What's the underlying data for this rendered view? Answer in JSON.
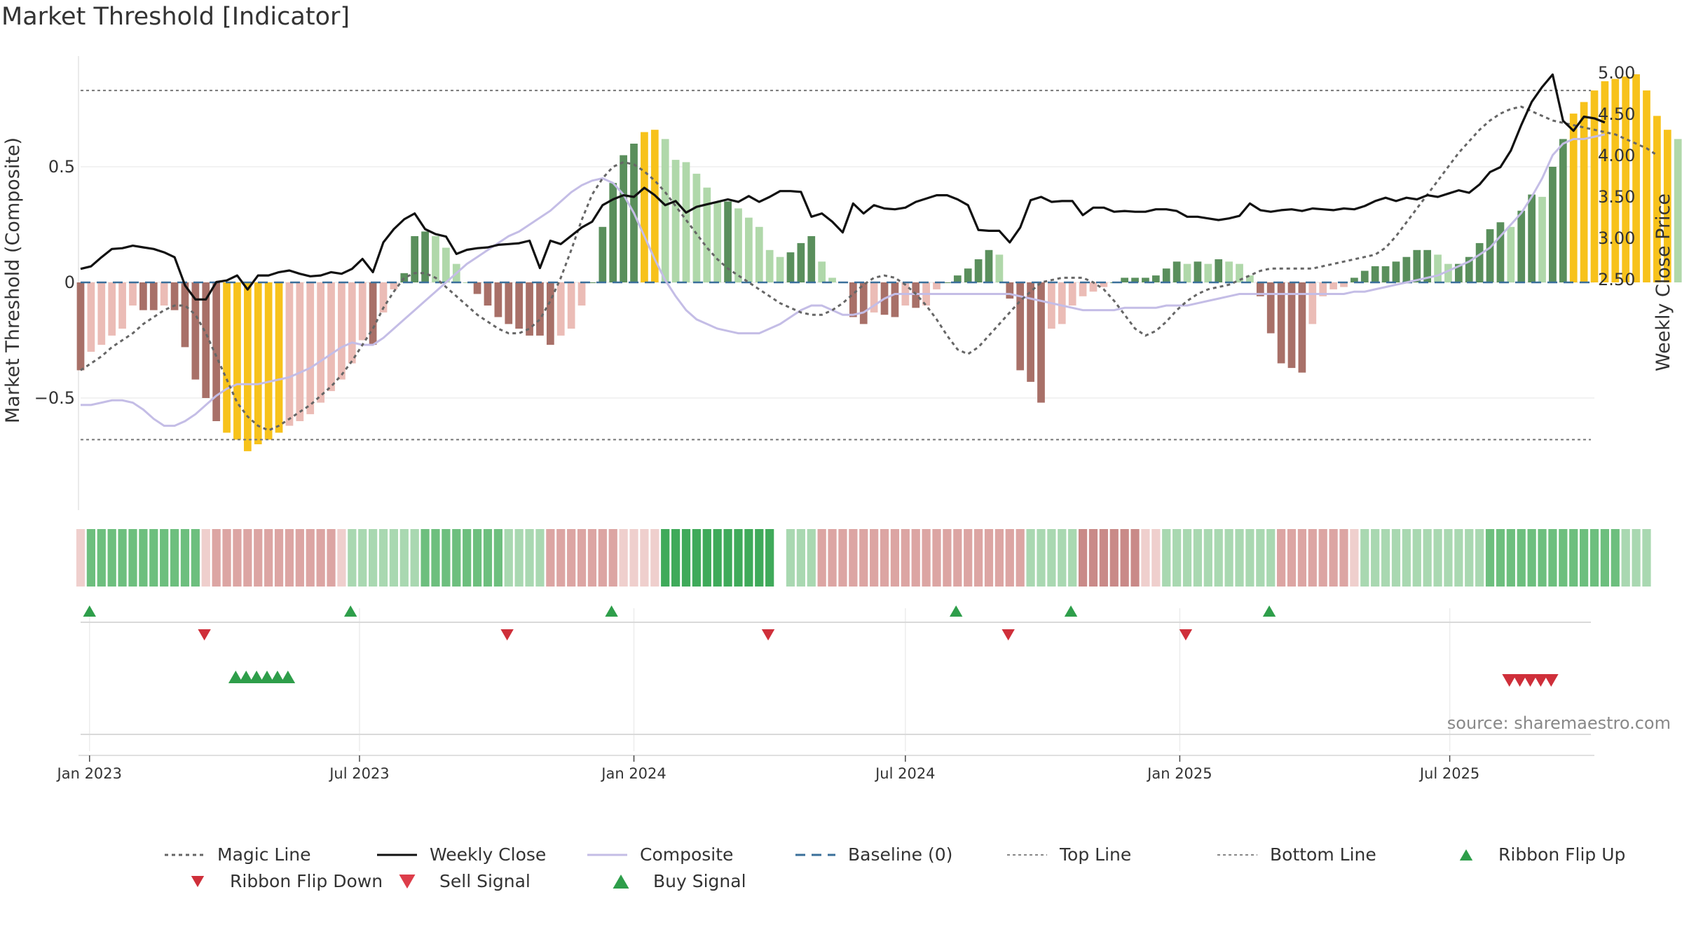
{
  "chart_data": {
    "type": "bar",
    "title": "Market Threshold [Indicator]",
    "ylabel": "Market Threshold (Composite)",
    "ylabel_right": "Weekly Close Price",
    "source": "source: sharemaestro.com",
    "x_start": "2022-12-26",
    "x_end": "2025-10-06",
    "x_ticks": [
      {
        "date": "2023-01-01",
        "label": "Jan 2023"
      },
      {
        "date": "2023-07-01",
        "label": "Jul 2023"
      },
      {
        "date": "2024-01-01",
        "label": "Jan 2024"
      },
      {
        "date": "2024-07-01",
        "label": "Jul 2024"
      },
      {
        "date": "2025-01-01",
        "label": "Jan 2025"
      },
      {
        "date": "2025-07-01",
        "label": "Jul 2025"
      }
    ],
    "ylim_left": [
      -1.0,
      1.0
    ],
    "y_ticks_left": [
      {
        "value": 0.5,
        "label": "0.5"
      },
      {
        "value": 0,
        "label": "0"
      },
      {
        "value": -0.5,
        "label": "−0.5"
      }
    ],
    "ylim_right": [
      2.2,
      5.1
    ],
    "y_ticks_right": [
      {
        "value": 5.0,
        "label": "5.00"
      },
      {
        "value": 4.5,
        "label": "4.50"
      },
      {
        "value": 4.0,
        "label": "4.00"
      },
      {
        "value": 3.5,
        "label": "3.50"
      },
      {
        "value": 3.0,
        "label": "3.00"
      },
      {
        "value": 2.5,
        "label": "2.50"
      }
    ],
    "top_line": 0.83,
    "bottom_line": -0.68,
    "composite_bars": [
      -0.38,
      -0.3,
      -0.27,
      -0.23,
      -0.2,
      -0.1,
      -0.12,
      -0.12,
      -0.1,
      -0.12,
      -0.28,
      -0.42,
      -0.5,
      -0.6,
      -0.65,
      -0.68,
      -0.73,
      -0.7,
      -0.68,
      -0.65,
      -0.62,
      -0.6,
      -0.57,
      -0.52,
      -0.47,
      -0.42,
      -0.35,
      -0.25,
      -0.27,
      -0.13,
      -0.03,
      0.04,
      0.2,
      0.22,
      0.2,
      0.15,
      0.08,
      0.0,
      -0.05,
      -0.1,
      -0.15,
      -0.18,
      -0.2,
      -0.23,
      -0.23,
      -0.27,
      -0.23,
      -0.2,
      -0.1,
      0.0,
      0.24,
      0.43,
      0.55,
      0.6,
      0.65,
      0.66,
      0.62,
      0.53,
      0.52,
      0.47,
      0.41,
      0.35,
      0.35,
      0.32,
      0.28,
      0.24,
      0.14,
      0.11,
      0.13,
      0.17,
      0.2,
      0.09,
      0.02,
      0.0,
      -0.15,
      -0.18,
      -0.13,
      -0.14,
      -0.15,
      -0.1,
      -0.11,
      -0.1,
      -0.03,
      0.0,
      0.03,
      0.06,
      0.1,
      0.14,
      0.12,
      -0.07,
      -0.38,
      -0.43,
      -0.52,
      -0.2,
      -0.18,
      -0.1,
      -0.06,
      -0.04,
      -0.02,
      0.0,
      0.02,
      0.02,
      0.02,
      0.03,
      0.06,
      0.09,
      0.08,
      0.09,
      0.08,
      0.1,
      0.09,
      0.08,
      0.03,
      -0.06,
      -0.22,
      -0.35,
      -0.37,
      -0.39,
      -0.18,
      -0.06,
      -0.03,
      -0.02,
      0.02,
      0.05,
      0.07,
      0.07,
      0.09,
      0.11,
      0.14,
      0.14,
      0.12,
      0.08,
      0.08,
      0.11,
      0.17,
      0.23,
      0.26,
      0.24,
      0.31,
      0.38,
      0.37,
      0.5,
      0.62,
      0.73,
      0.78,
      0.83,
      0.87,
      0.88,
      0.89,
      0.9,
      0.83,
      0.72,
      0.66,
      0.62,
      0.57
    ],
    "weekly_close": [
      2.63,
      2.66,
      2.77,
      2.87,
      2.88,
      2.91,
      2.89,
      2.87,
      2.83,
      2.77,
      2.43,
      2.26,
      2.26,
      2.47,
      2.49,
      2.55,
      2.38,
      2.55,
      2.55,
      2.59,
      2.61,
      2.57,
      2.54,
      2.55,
      2.59,
      2.57,
      2.63,
      2.75,
      2.59,
      2.95,
      3.11,
      3.23,
      3.3,
      3.11,
      3.05,
      3.02,
      2.81,
      2.86,
      2.88,
      2.89,
      2.92,
      2.93,
      2.94,
      2.97,
      2.64,
      2.97,
      2.93,
      3.03,
      3.13,
      3.2,
      3.4,
      3.47,
      3.52,
      3.5,
      3.61,
      3.52,
      3.4,
      3.45,
      3.31,
      3.38,
      3.41,
      3.44,
      3.47,
      3.44,
      3.51,
      3.44,
      3.5,
      3.57,
      3.57,
      3.56,
      3.26,
      3.3,
      3.2,
      3.07,
      3.42,
      3.3,
      3.4,
      3.36,
      3.35,
      3.37,
      3.44,
      3.48,
      3.52,
      3.52,
      3.47,
      3.4,
      3.1,
      3.09,
      3.09,
      2.95,
      3.13,
      3.46,
      3.5,
      3.44,
      3.45,
      3.45,
      3.28,
      3.37,
      3.37,
      3.32,
      3.33,
      3.32,
      3.32,
      3.35,
      3.35,
      3.33,
      3.26,
      3.26,
      3.24,
      3.22,
      3.24,
      3.27,
      3.42,
      3.34,
      3.32,
      3.34,
      3.35,
      3.33,
      3.36,
      3.35,
      3.34,
      3.36,
      3.35,
      3.39,
      3.45,
      3.49,
      3.45,
      3.49,
      3.47,
      3.52,
      3.5,
      3.54,
      3.58,
      3.55,
      3.65,
      3.8,
      3.86,
      4.06,
      4.37,
      4.65,
      4.83,
      4.98,
      4.42,
      4.3,
      4.47,
      4.45,
      4.4
    ],
    "magic_line": [
      -0.38,
      -0.35,
      -0.32,
      -0.28,
      -0.25,
      -0.22,
      -0.18,
      -0.15,
      -0.12,
      -0.1,
      -0.1,
      -0.14,
      -0.22,
      -0.32,
      -0.42,
      -0.52,
      -0.58,
      -0.62,
      -0.64,
      -0.62,
      -0.59,
      -0.56,
      -0.53,
      -0.49,
      -0.45,
      -0.4,
      -0.34,
      -0.27,
      -0.2,
      -0.11,
      -0.04,
      0.02,
      0.04,
      0.04,
      0.02,
      -0.02,
      -0.06,
      -0.1,
      -0.14,
      -0.17,
      -0.2,
      -0.22,
      -0.22,
      -0.2,
      -0.16,
      -0.08,
      0.02,
      0.14,
      0.27,
      0.38,
      0.45,
      0.5,
      0.52,
      0.51,
      0.48,
      0.44,
      0.39,
      0.33,
      0.27,
      0.21,
      0.15,
      0.1,
      0.06,
      0.03,
      0.0,
      -0.03,
      -0.06,
      -0.09,
      -0.11,
      -0.13,
      -0.14,
      -0.14,
      -0.12,
      -0.09,
      -0.05,
      -0.01,
      0.02,
      0.03,
      0.02,
      -0.01,
      -0.05,
      -0.1,
      -0.16,
      -0.23,
      -0.29,
      -0.31,
      -0.28,
      -0.23,
      -0.18,
      -0.13,
      -0.08,
      -0.04,
      0.0,
      0.01,
      0.02,
      0.02,
      0.02,
      0.0,
      -0.03,
      -0.08,
      -0.14,
      -0.2,
      -0.23,
      -0.21,
      -0.17,
      -0.12,
      -0.08,
      -0.05,
      -0.03,
      -0.02,
      -0.01,
      0.01,
      0.03,
      0.05,
      0.06,
      0.06,
      0.06,
      0.06,
      0.06,
      0.07,
      0.08,
      0.09,
      0.1,
      0.11,
      0.12,
      0.15,
      0.2,
      0.26,
      0.32,
      0.38,
      0.44,
      0.5,
      0.56,
      0.61,
      0.66,
      0.7,
      0.73,
      0.75,
      0.76,
      0.74,
      0.72,
      0.7,
      0.69,
      0.68,
      0.67,
      0.66,
      0.65,
      0.64,
      0.62,
      0.6,
      0.58,
      0.55
    ],
    "composite_line": [
      -0.53,
      -0.53,
      -0.52,
      -0.51,
      -0.51,
      -0.52,
      -0.55,
      -0.59,
      -0.62,
      -0.62,
      -0.6,
      -0.57,
      -0.53,
      -0.49,
      -0.46,
      -0.44,
      -0.44,
      -0.44,
      -0.43,
      -0.42,
      -0.41,
      -0.39,
      -0.37,
      -0.34,
      -0.31,
      -0.28,
      -0.26,
      -0.27,
      -0.27,
      -0.24,
      -0.2,
      -0.16,
      -0.12,
      -0.08,
      -0.04,
      0.0,
      0.04,
      0.08,
      0.11,
      0.14,
      0.17,
      0.2,
      0.22,
      0.25,
      0.28,
      0.31,
      0.35,
      0.39,
      0.42,
      0.44,
      0.45,
      0.43,
      0.38,
      0.3,
      0.2,
      0.1,
      0.01,
      -0.06,
      -0.12,
      -0.16,
      -0.18,
      -0.2,
      -0.21,
      -0.22,
      -0.22,
      -0.22,
      -0.2,
      -0.18,
      -0.15,
      -0.12,
      -0.1,
      -0.1,
      -0.12,
      -0.14,
      -0.14,
      -0.13,
      -0.1,
      -0.07,
      -0.05,
      -0.05,
      -0.05,
      -0.05,
      -0.05,
      -0.05,
      -0.05,
      -0.05,
      -0.05,
      -0.05,
      -0.05,
      -0.05,
      -0.06,
      -0.07,
      -0.08,
      -0.09,
      -0.1,
      -0.11,
      -0.12,
      -0.12,
      -0.12,
      -0.12,
      -0.11,
      -0.11,
      -0.11,
      -0.11,
      -0.1,
      -0.1,
      -0.1,
      -0.09,
      -0.08,
      -0.07,
      -0.06,
      -0.05,
      -0.05,
      -0.05,
      -0.05,
      -0.05,
      -0.05,
      -0.05,
      -0.05,
      -0.05,
      -0.05,
      -0.05,
      -0.04,
      -0.04,
      -0.03,
      -0.02,
      -0.01,
      0.0,
      0.01,
      0.02,
      0.03,
      0.05,
      0.07,
      0.09,
      0.12,
      0.15,
      0.2,
      0.25,
      0.3,
      0.37,
      0.45,
      0.55,
      0.6,
      0.62,
      0.62,
      0.63,
      0.64
    ],
    "ribbon": {
      "colors": {
        "strong_up": "#3faa5a",
        "up": "#6dbf7e",
        "weak_up": "#a9d8b1",
        "strong_down": "#c98a88",
        "down": "#dca5a3",
        "weak_down": "#efcfcd"
      },
      "segments": [
        {
          "state": "weak_down",
          "weeks": 1
        },
        {
          "state": "up",
          "weeks": 11
        },
        {
          "state": "weak_down",
          "weeks": 1
        },
        {
          "state": "down",
          "weeks": 12
        },
        {
          "state": "weak_down",
          "weeks": 1
        },
        {
          "state": "weak_up",
          "weeks": 7
        },
        {
          "state": "up",
          "weeks": 8
        },
        {
          "state": "weak_up",
          "weeks": 4
        },
        {
          "state": "down",
          "weeks": 7
        },
        {
          "state": "weak_down",
          "weeks": 4
        },
        {
          "state": "strong_up",
          "weeks": 11
        },
        {
          "state": "gap",
          "weeks": 1
        },
        {
          "state": "weak_up",
          "weeks": 3
        },
        {
          "state": "down",
          "weeks": 20
        },
        {
          "state": "weak_up",
          "weeks": 5
        },
        {
          "state": "strong_down",
          "weeks": 6
        },
        {
          "state": "weak_down",
          "weeks": 2
        },
        {
          "state": "weak_up",
          "weeks": 11
        },
        {
          "state": "down",
          "weeks": 7
        },
        {
          "state": "weak_down",
          "weeks": 1
        },
        {
          "state": "weak_up",
          "weeks": 12
        },
        {
          "state": "up",
          "weeks": 13
        },
        {
          "state": "weak_up",
          "weeks": 3
        }
      ]
    },
    "ribbon_flip_up": [
      "2023-01-01",
      "2023-06-25",
      "2023-12-17",
      "2024-08-04",
      "2024-10-20",
      "2025-03-02"
    ],
    "ribbon_flip_down": [
      "2023-03-19",
      "2023-10-08",
      "2024-03-31",
      "2024-09-08",
      "2025-01-05"
    ],
    "buy_signals": [
      "2023-04-09",
      "2023-04-16",
      "2023-04-23",
      "2023-04-30",
      "2023-05-07",
      "2023-05-14"
    ],
    "sell_signals": [
      "2025-08-10",
      "2025-08-17",
      "2025-08-24",
      "2025-08-31",
      "2025-09-07"
    ],
    "colors": {
      "strong_pos": "#5a8f5c",
      "pos": "#b0d8aa",
      "strong_neg": "#a87068",
      "neg": "#ebbcb6",
      "extreme": "#f7c21b",
      "weekly_close": "#111111",
      "composite": "#c4bde6",
      "magic_line": "#666666",
      "baseline": "#3a6f9a",
      "signal_up": "#2e9e4a",
      "signal_down": "#cf2f3a"
    },
    "legend": [
      {
        "label": "Magic Line",
        "symbol": "dotted"
      },
      {
        "label": "Weekly Close",
        "symbol": "solid-black"
      },
      {
        "label": "Composite",
        "symbol": "solid-lavender"
      },
      {
        "label": "Baseline (0)",
        "symbol": "dashed-blue"
      },
      {
        "label": "Top Line",
        "symbol": "dotted-light"
      },
      {
        "label": "Bottom Line",
        "symbol": "dotted-light"
      },
      {
        "label": "Ribbon Flip Up",
        "symbol": "triangle-up"
      },
      {
        "label": "Ribbon Flip Down",
        "symbol": "triangle-down"
      },
      {
        "label": "Sell Signal",
        "symbol": "triangle-down-red"
      },
      {
        "label": "Buy Signal",
        "symbol": "triangle-up-green"
      }
    ],
    "legend_position": "bottom"
  }
}
